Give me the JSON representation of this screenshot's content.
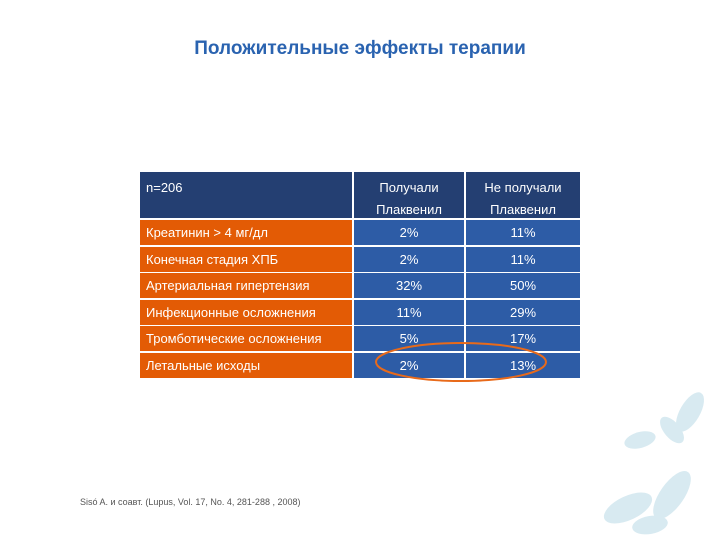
{
  "title": "Положительные эффекты терапии",
  "table": {
    "header": [
      "n=206",
      "Получали Плаквенил",
      "Не получали Плаквенил"
    ],
    "rows": [
      [
        "Креатинин > 4 мг/дл",
        "2%",
        "11%"
      ],
      [
        "Конечная стадия ХПБ",
        "2%",
        "11%"
      ],
      [
        "Артериальная гипертензия",
        "32%",
        "50%"
      ],
      [
        "Инфекционные осложнения",
        "11%",
        "29%"
      ],
      [
        "Тромботические осложнения",
        "5%",
        "17%"
      ],
      [
        "Летальные исходы",
        "2%",
        "13%"
      ]
    ]
  },
  "footnote": "Sisó A. и соавт. (Lupus, Vol. 17, No. 4, 281-288 , 2008)"
}
